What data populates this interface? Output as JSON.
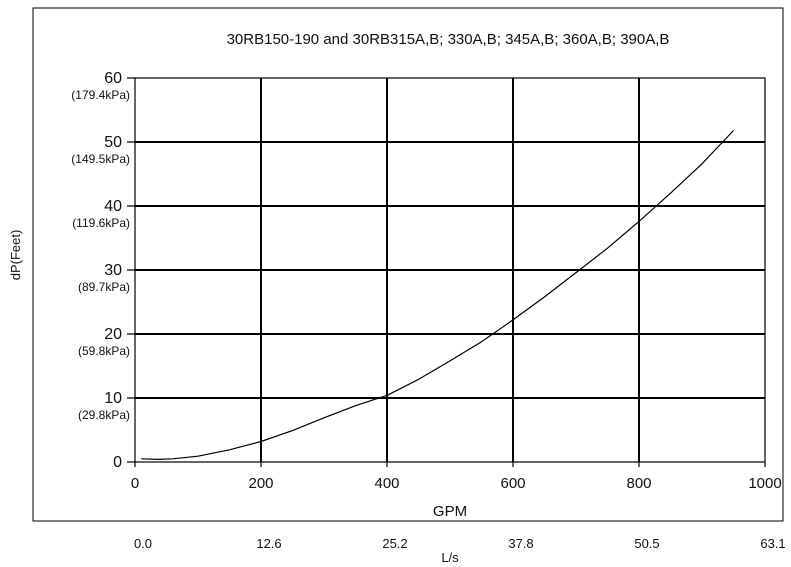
{
  "chart_data": {
    "type": "line",
    "title": "30RB150-190 and 30RB315A,B; 330A,B; 345A,B; 360A,B; 390A,B",
    "xlabel": "GPM",
    "ylabel": "dP(Feet)",
    "secondary_xlabel": "L/s",
    "xlim": [
      0,
      1000
    ],
    "ylim": [
      0,
      60
    ],
    "grid": true,
    "x_ticks": [
      "0",
      "200",
      "400",
      "600",
      "800",
      "1000"
    ],
    "x_tick_values": [
      0,
      200,
      400,
      600,
      800,
      1000
    ],
    "secondary_x_ticks": [
      "0.0",
      "12.6",
      "25.2",
      "37.8",
      "50.5",
      "63.1"
    ],
    "y_ticks": [
      "0",
      "10",
      "20",
      "30",
      "40",
      "50",
      "60"
    ],
    "y_tick_values": [
      0,
      10,
      20,
      30,
      40,
      50,
      60
    ],
    "y_ticks_kpa": [
      "",
      "(29.8kPa)",
      "(59.8kPa)",
      "(89.7kPa)",
      "(119.6kPa)",
      "(149.5kPa)",
      "(179.4kPa)"
    ],
    "series": [
      {
        "x": [
          10,
          35,
          60,
          100,
          150,
          200,
          250,
          300,
          350,
          400,
          450,
          500,
          550,
          600,
          650,
          700,
          750,
          800,
          850,
          900,
          950
        ],
        "y": [
          0.5,
          0.4,
          0.5,
          0.9,
          1.9,
          3.2,
          4.9,
          6.9,
          8.8,
          10.4,
          12.9,
          15.8,
          18.8,
          22.2,
          25.8,
          29.6,
          33.4,
          37.6,
          42,
          46.6,
          51.8
        ]
      }
    ]
  }
}
